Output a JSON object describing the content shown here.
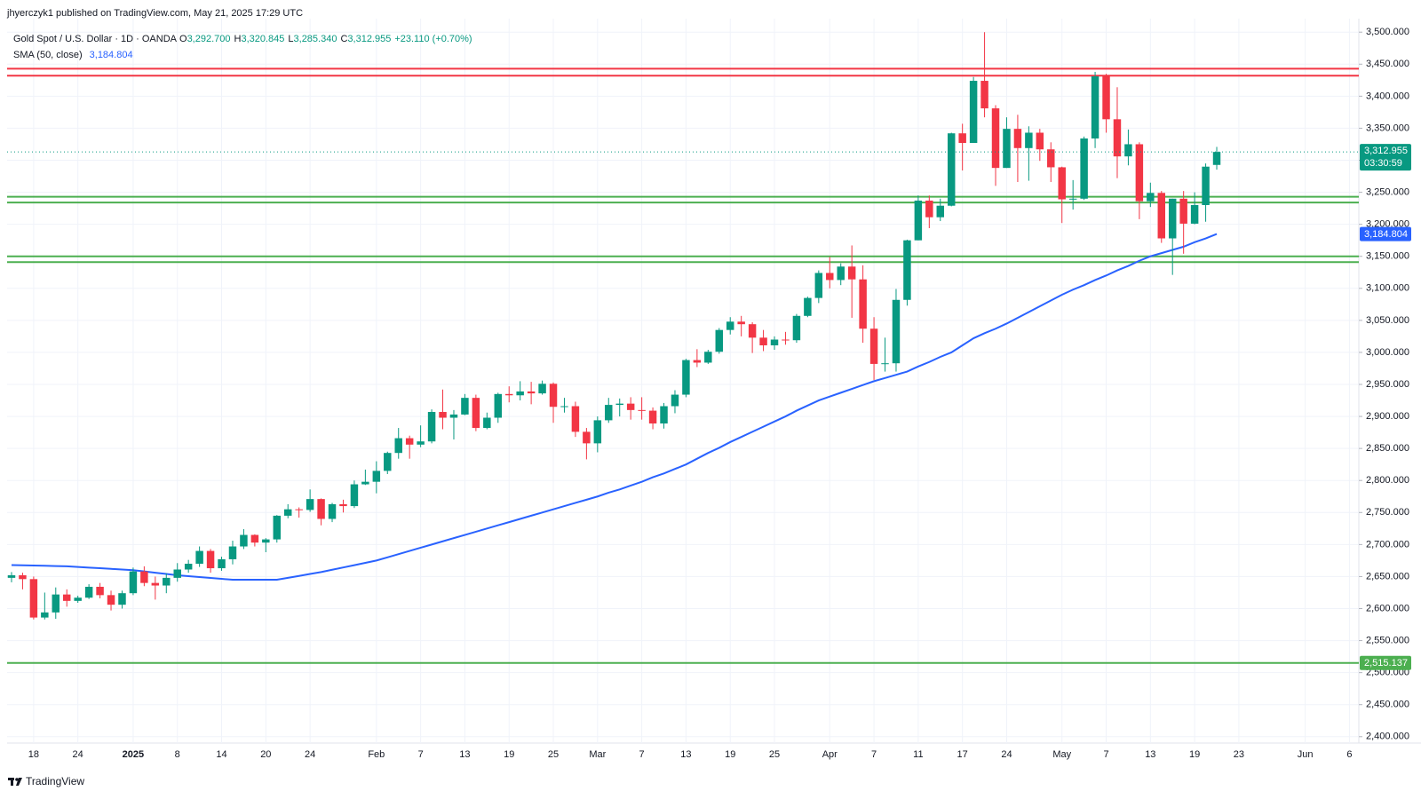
{
  "header": {
    "publisher": "jhyerczyk1 published on TradingView.com, May 21, 2025 17:29 UTC"
  },
  "brand": "TradingView",
  "chart_data": {
    "type": "candlestick",
    "legend": {
      "symbol": "Gold Spot / U.S. Dollar · 1D · OANDA",
      "items": [
        {
          "key": "O",
          "value": "3,292.700"
        },
        {
          "key": "H",
          "value": "3,320.845"
        },
        {
          "key": "L",
          "value": "3,285.340"
        },
        {
          "key": "C",
          "value": "3,312.955"
        }
      ],
      "change": "+23.110 (+0.70%)"
    },
    "up_color": "#089981",
    "down_color": "#f23645",
    "grid": true,
    "xlim": [
      -0.4,
      121.85
    ],
    "ylim": [
      2390,
      3510
    ],
    "yticks": [
      {
        "value": 2400,
        "label": "2,400.000"
      },
      {
        "value": 2450,
        "label": "2,450.000"
      },
      {
        "value": 2500,
        "label": "2,500.000"
      },
      {
        "value": 2550,
        "label": "2,550.000"
      },
      {
        "value": 2600,
        "label": "2,600.000"
      },
      {
        "value": 2650,
        "label": "2,650.000"
      },
      {
        "value": 2700,
        "label": "2,700.000"
      },
      {
        "value": 2750,
        "label": "2,750.000"
      },
      {
        "value": 2800,
        "label": "2,800.000"
      },
      {
        "value": 2850,
        "label": "2,850.000"
      },
      {
        "value": 2900,
        "label": "2,900.000"
      },
      {
        "value": 2950,
        "label": "2,950.000"
      },
      {
        "value": 3000,
        "label": "3,000.000"
      },
      {
        "value": 3050,
        "label": "3,050.000"
      },
      {
        "value": 3100,
        "label": "3,100.000"
      },
      {
        "value": 3150,
        "label": "3,150.000"
      },
      {
        "value": 3200,
        "label": "3,200.000"
      },
      {
        "value": 3250,
        "label": "3,250.000"
      },
      {
        "value": 3300,
        "label": "3,300.000"
      },
      {
        "value": 3350,
        "label": "3,350.000"
      },
      {
        "value": 3400,
        "label": "3,400.000"
      },
      {
        "value": 3450,
        "label": "3,450.000"
      },
      {
        "value": 3500,
        "label": "3,500.000"
      }
    ],
    "categories": [
      null,
      null,
      "18",
      null,
      null,
      null,
      "24",
      null,
      null,
      null,
      null,
      "2025",
      null,
      null,
      null,
      "8",
      null,
      null,
      null,
      "14",
      null,
      null,
      null,
      "20",
      null,
      null,
      null,
      "24",
      null,
      null,
      null,
      null,
      null,
      "Feb",
      null,
      null,
      null,
      "7",
      null,
      null,
      null,
      "13",
      null,
      null,
      null,
      "19",
      null,
      null,
      null,
      "25",
      null,
      null,
      null,
      "Mar",
      null,
      null,
      null,
      "7",
      null,
      null,
      null,
      "13",
      null,
      null,
      null,
      "19",
      null,
      null,
      null,
      "25",
      null,
      null,
      null,
      null,
      "Apr",
      null,
      null,
      null,
      "7",
      null,
      null,
      null,
      "11",
      null,
      null,
      null,
      "17",
      null,
      null,
      null,
      "24",
      null,
      null,
      null,
      null,
      "May",
      null,
      null,
      null,
      "7",
      null,
      null,
      null,
      "13",
      null,
      null,
      null,
      "19",
      null,
      null,
      null,
      "23",
      null,
      null,
      null,
      null,
      null,
      "Jun",
      null,
      null,
      null,
      "6"
    ],
    "open": [
      2648,
      2652,
      2646,
      2586,
      2594,
      2622,
      2612,
      2617,
      2634,
      2621,
      2606,
      2624,
      2658,
      2640,
      2636,
      2648,
      2661,
      2670,
      2690,
      2663,
      2677,
      2697,
      2715,
      2703,
      2708,
      2745,
      2755,
      2754,
      2771,
      2740,
      2763,
      2760,
      2794,
      2798,
      2815,
      2843,
      2866,
      2856,
      2861,
      2907,
      2898,
      2903,
      2929,
      2882,
      2898,
      2935,
      2933,
      2939,
      2936,
      2951,
      2915,
      2916,
      2876,
      2858,
      2894,
      2918,
      2920,
      2910,
      2909,
      2889,
      2916,
      2934,
      2988,
      2984,
      3001,
      3035,
      3048,
      3044,
      3023,
      3011,
      3020,
      3019,
      3057,
      3085,
      3124,
      3113,
      3134,
      3114,
      3037,
      2982,
      2983,
      3082,
      3175,
      3237,
      3211,
      3229,
      3342,
      3327,
      3424,
      3381,
      3288,
      3349,
      3319,
      3343,
      3317,
      3289,
      3239,
      3240,
      3334,
      3431,
      3364,
      3306,
      3325,
      3236,
      3249,
      3178,
      3240,
      3201,
      3230,
      3292.7,
      null,
      null,
      null,
      null,
      null,
      null,
      null,
      null,
      null,
      null,
      null,
      null
    ],
    "high": [
      2657,
      2656,
      2650,
      2625,
      2633,
      2630,
      2620,
      2638,
      2640,
      2628,
      2628,
      2664,
      2666,
      2650,
      2655,
      2671,
      2676,
      2697,
      2693,
      2681,
      2706,
      2724,
      2716,
      2710,
      2746,
      2763,
      2758,
      2786,
      2772,
      2765,
      2770,
      2800,
      2817,
      2830,
      2845,
      2882,
      2870,
      2886,
      2911,
      2942,
      2910,
      2935,
      2934,
      2906,
      2937,
      2947,
      2955,
      2954,
      2956,
      2953,
      2929,
      2923,
      2882,
      2900,
      2929,
      2928,
      2930,
      2930,
      2914,
      2921,
      2941,
      2990,
      3005,
      3004,
      3038,
      3055,
      3057,
      3047,
      3035,
      3025,
      3032,
      3060,
      3087,
      3128,
      3149,
      3139,
      3167,
      3136,
      3055,
      3023,
      3099,
      3176,
      3245,
      3245,
      3240,
      3343,
      3357,
      3430,
      3500,
      3386,
      3367,
      3371,
      3353,
      3349,
      3328,
      3290,
      3269,
      3337,
      3438,
      3435,
      3414,
      3348,
      3328,
      3265,
      3252,
      3240,
      3252,
      3250,
      3295,
      3320.845,
      null,
      null,
      null,
      null,
      null,
      null,
      null,
      null,
      null,
      null,
      null,
      null
    ],
    "low": [
      2641,
      2630,
      2583,
      2583,
      2584,
      2603,
      2609,
      2615,
      2616,
      2597,
      2600,
      2621,
      2635,
      2614,
      2624,
      2642,
      2656,
      2665,
      2656,
      2659,
      2669,
      2693,
      2697,
      2688,
      2703,
      2741,
      2742,
      2751,
      2730,
      2735,
      2750,
      2757,
      2793,
      2780,
      2810,
      2834,
      2834,
      2852,
      2858,
      2880,
      2864,
      2902,
      2877,
      2880,
      2890,
      2922,
      2925,
      2919,
      2934,
      2890,
      2906,
      2868,
      2833,
      2844,
      2890,
      2900,
      2895,
      2895,
      2880,
      2881,
      2905,
      2930,
      2977,
      2982,
      2998,
      3028,
      3025,
      2999,
      3002,
      3004,
      3012,
      3015,
      3055,
      3077,
      3100,
      3105,
      3054,
      3015,
      2957,
      2970,
      2970,
      3073,
      3175,
      3194,
      3205,
      3228,
      3284,
      3327,
      3367,
      3260,
      3288,
      3266,
      3268,
      3299,
      3266,
      3202,
      3223,
      3238,
      3319,
      3343,
      3272,
      3292,
      3208,
      3227,
      3171,
      3121,
      3154,
      3200,
      3204,
      3285.34,
      null,
      null,
      null,
      null,
      null,
      null,
      null,
      null,
      null,
      null,
      null,
      null
    ],
    "close": [
      2652,
      2646,
      2586,
      2594,
      2622,
      2612,
      2617,
      2634,
      2621,
      2606,
      2624,
      2658,
      2640,
      2636,
      2648,
      2661,
      2670,
      2690,
      2663,
      2677,
      2697,
      2715,
      2703,
      2708,
      2745,
      2755,
      2754,
      2771,
      2740,
      2763,
      2760,
      2794,
      2798,
      2815,
      2843,
      2866,
      2856,
      2861,
      2907,
      2898,
      2903,
      2929,
      2882,
      2898,
      2935,
      2933,
      2939,
      2936,
      2951,
      2915,
      2916,
      2876,
      2858,
      2894,
      2918,
      2920,
      2910,
      2909,
      2889,
      2916,
      2934,
      2988,
      2984,
      3001,
      3035,
      3048,
      3044,
      3023,
      3011,
      3020,
      3019,
      3057,
      3085,
      3124,
      3113,
      3134,
      3114,
      3037,
      2982,
      2983,
      3082,
      3175,
      3237,
      3211,
      3229,
      3342,
      3327,
      3424,
      3381,
      3288,
      3349,
      3319,
      3343,
      3317,
      3289,
      3239,
      3240,
      3334,
      3431,
      3364,
      3306,
      3325,
      3236,
      3249,
      3178,
      3240,
      3201,
      3230,
      3290,
      3312.955,
      null,
      null,
      null,
      null,
      null,
      null,
      null,
      null,
      null,
      null,
      null,
      null
    ],
    "last_price_label": "3,312.955",
    "countdown": "03:30:59",
    "overlays": [
      {
        "name": "SMA (50, close)",
        "color": "#2962ff",
        "value_label": "3,184.804",
        "values": [
          2668,
          2667.6,
          2667.2,
          2666.8,
          2666.4,
          2666,
          2665,
          2664,
          2663,
          2662,
          2661,
          2660,
          2658,
          2656,
          2654,
          2652,
          2650.6,
          2649.2,
          2647.8,
          2646.4,
          2645,
          2645,
          2645,
          2645,
          2645,
          2648,
          2651,
          2654,
          2657,
          2660.6,
          2664.2,
          2667.8,
          2671.4,
          2675,
          2680,
          2685,
          2690,
          2695,
          2700,
          2705,
          2710,
          2715,
          2720,
          2725,
          2730,
          2735,
          2740,
          2745,
          2750,
          2755,
          2760,
          2765,
          2770,
          2775,
          2781,
          2786,
          2792,
          2798,
          2805,
          2811,
          2818,
          2825,
          2834,
          2843,
          2851,
          2860,
          2868,
          2876,
          2884,
          2892,
          2900,
          2909,
          2917,
          2925,
          2931,
          2937,
          2943,
          2949,
          2955,
          2960,
          2965,
          2970,
          2978,
          2985,
          2993,
          3000,
          3011,
          3022,
          3030,
          3037,
          3045,
          3054,
          3063,
          3072,
          3081,
          3090,
          3098,
          3105,
          3113,
          3120,
          3128,
          3135,
          3143,
          3150,
          3155,
          3160,
          3165,
          3172,
          3178,
          3184.804,
          null,
          null,
          null,
          null,
          null,
          null,
          null,
          null,
          null,
          null,
          null,
          null
        ]
      }
    ],
    "levels": [
      {
        "value": 3443,
        "color": "#f23645"
      },
      {
        "value": 3432,
        "color": "#f23645"
      },
      {
        "value": 3243,
        "color": "#4caf50"
      },
      {
        "value": 3234,
        "color": "#4caf50"
      },
      {
        "value": 3150,
        "color": "#4caf50"
      },
      {
        "value": 3141,
        "color": "#4caf50"
      },
      {
        "value": 2515.137,
        "color": "#4caf50",
        "label": "2,515.137"
      }
    ]
  }
}
